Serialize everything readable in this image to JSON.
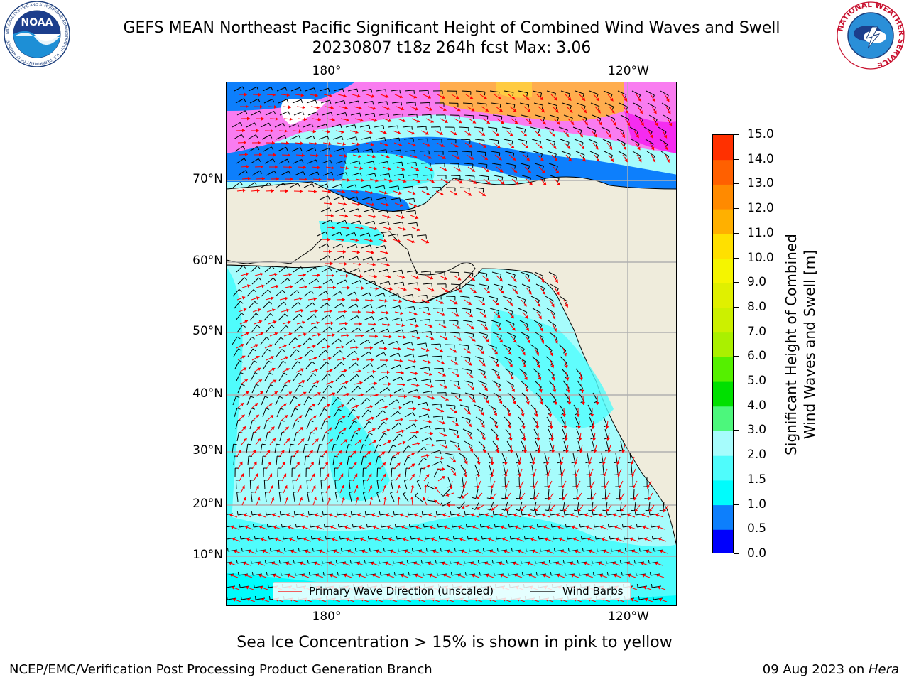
{
  "header": {
    "title_line1": "GEFS MEAN Northeast Pacific Significant Height of Combined Wind Waves and Swell",
    "title_line2": "20230807 t18z 264h fcst   Max: 3.06"
  },
  "logos": {
    "noaa_text": "NOAA",
    "noaa_ring": "NATIONAL OCEANIC AND ATMOSPHERIC ADMINISTRATION · U.S. DEPARTMENT OF COMMERCE",
    "nws_ring": "NATIONAL WEATHER SERVICE"
  },
  "map": {
    "lon_labels": [
      "180°",
      "120°W"
    ],
    "lat_labels": [
      "70°N",
      "60°N",
      "50°N",
      "40°N",
      "30°N",
      "20°N",
      "10°N"
    ],
    "colors": {
      "land": "#efecdc",
      "wave_light": "#a6fcfc",
      "wave_mid": "#4ffcfc",
      "wave_cyan": "#00fcfc",
      "wave_blue": "#0d7ffc",
      "wave_deep": "#0000fc",
      "ice_pink": "#f97cf0",
      "ice_magenta": "#f52cf0",
      "ice_orange": "#ffad4e",
      "ice_yellow": "#ffe03b",
      "arrow": "#ff0000",
      "barb": "#000000",
      "grid": "#b0b0b0"
    }
  },
  "legend": {
    "wave_label": "Primary Wave Direction (unscaled)",
    "barb_label": "Wind Barbs"
  },
  "colorbar": {
    "title_line1": "Significant Height of Combined",
    "title_line2": "Wind Waves and Swell [m]",
    "tick_labels": [
      "15.0",
      "14.0",
      "13.0",
      "12.0",
      "11.0",
      "10.0",
      "9.0",
      "8.0",
      "7.0",
      "6.0",
      "5.0",
      "4.0",
      "3.0",
      "2.0",
      "1.5",
      "1.0",
      "0.5",
      "0.0"
    ],
    "colors_bottom_to_top": [
      "#0000fc",
      "#0d7ffc",
      "#00fcfc",
      "#4ffcfc",
      "#a6fcfc",
      "#4cf77c",
      "#00e000",
      "#55f000",
      "#aaf000",
      "#ccf000",
      "#e0f000",
      "#f5f500",
      "#ffe000",
      "#ffb000",
      "#ff8a00",
      "#ff6000",
      "#ff3000"
    ]
  },
  "subtitle": "Sea Ice Concentration > 15% is shown in pink to yellow",
  "footer": {
    "left": "NCEP/EMC/Verification Post Processing Product Generation Branch",
    "right_prefix": "09 Aug 2023 on ",
    "right_host": "Hera"
  }
}
